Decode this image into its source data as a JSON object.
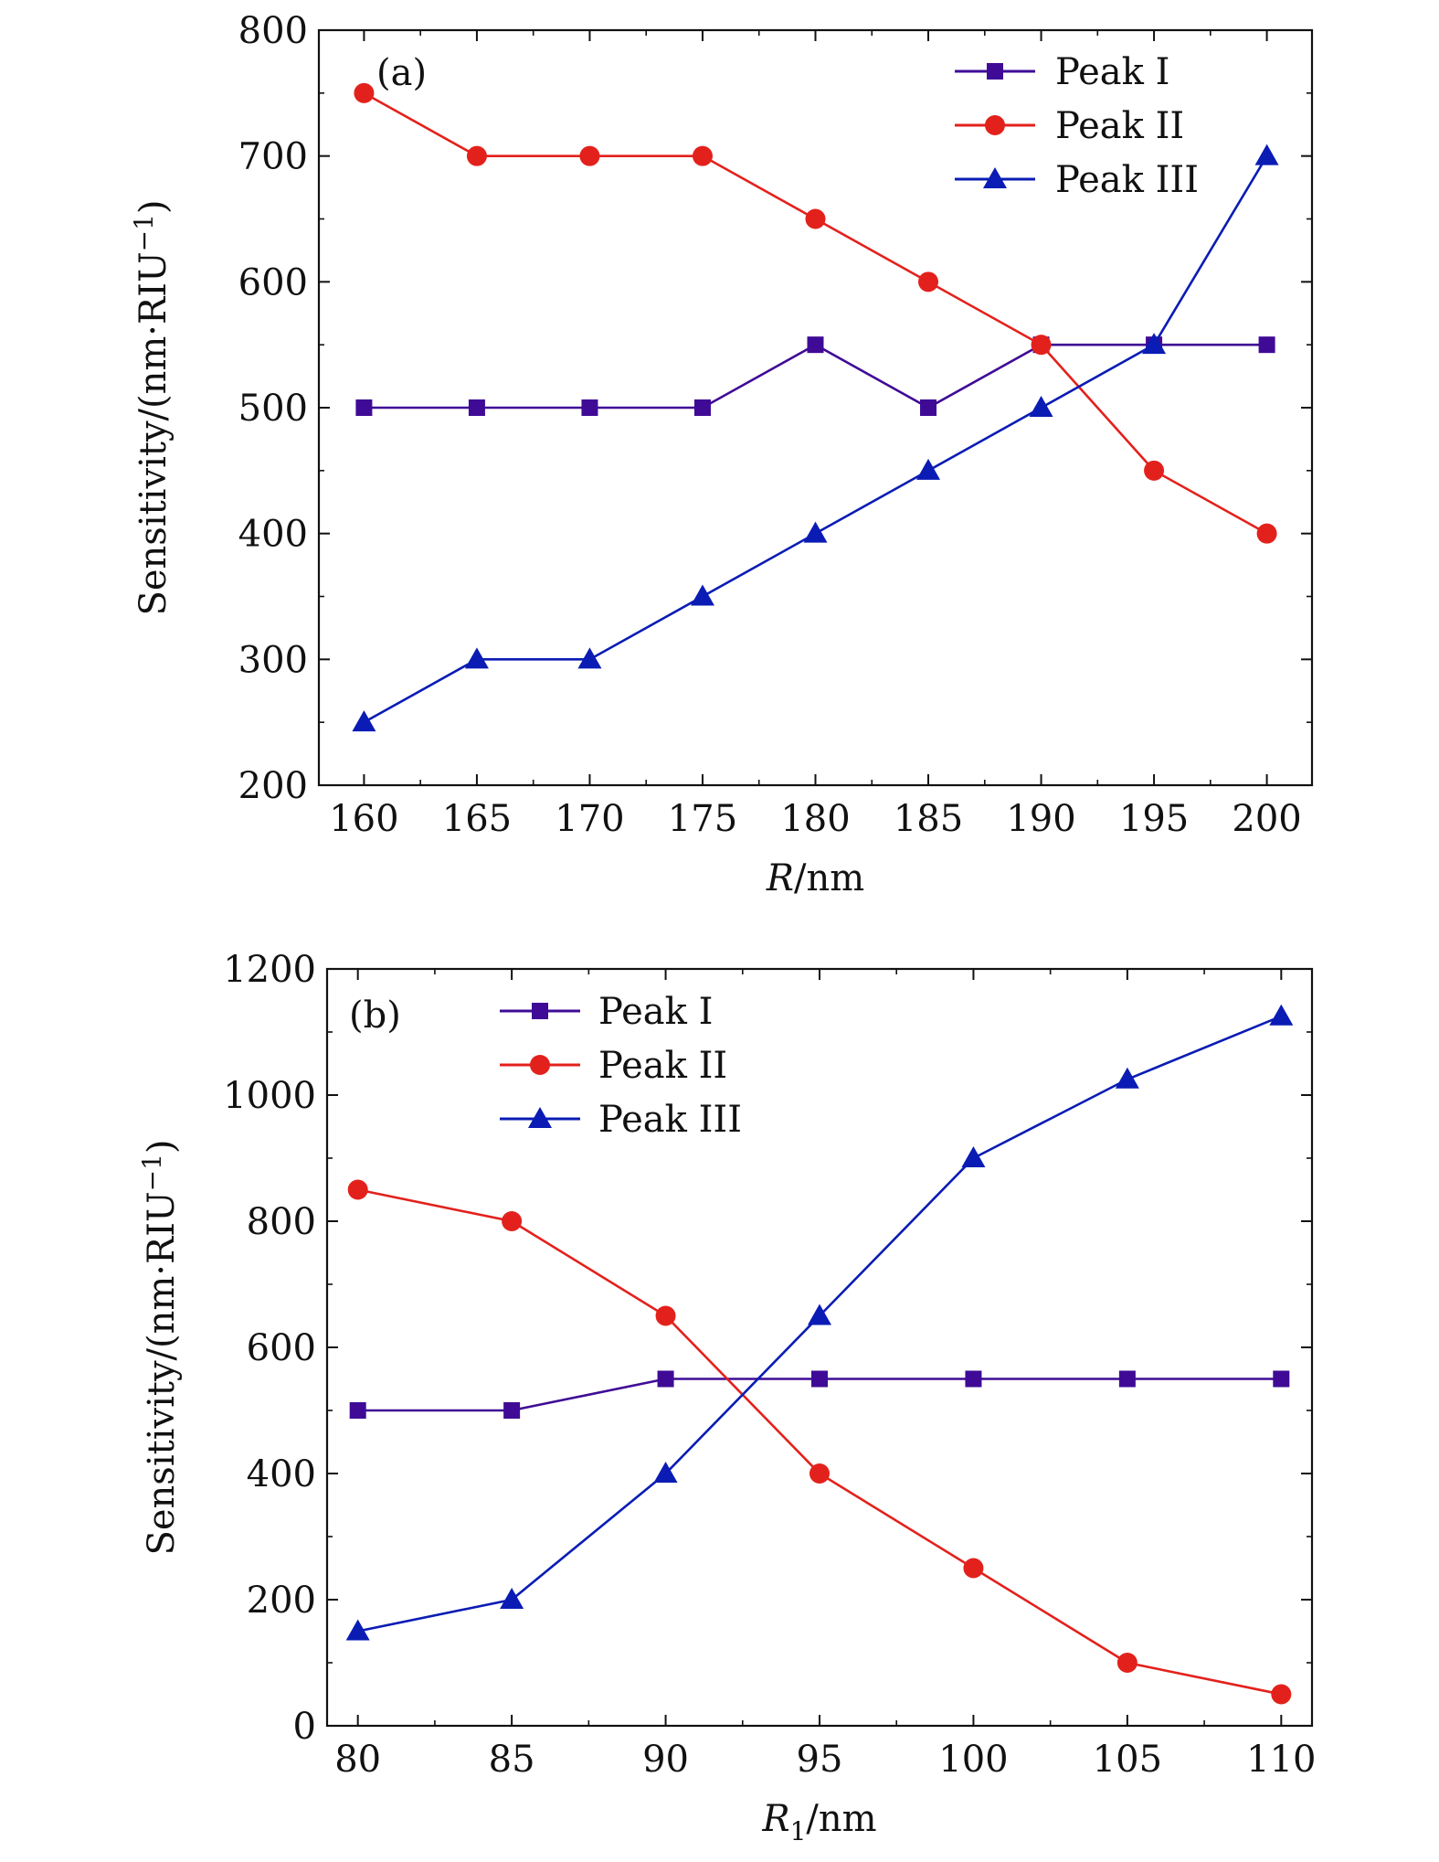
{
  "colors": {
    "peak1": "#3f0b96",
    "peak2": "#e3211c",
    "peak3": "#0a1cb4",
    "axis": "#111111"
  },
  "chart_data": [
    {
      "type": "line",
      "panel_label": "(a)",
      "xlabel_main": "R",
      "xlabel_sub": "",
      "xlabel_unit": "/nm",
      "ylabel": "Sensitivity/(nm·RIU",
      "ylabel_exp": "−1",
      "ylabel_end": ")",
      "xlim": [
        158,
        202
      ],
      "ylim": [
        200,
        800
      ],
      "xticks": [
        160,
        165,
        170,
        175,
        180,
        185,
        190,
        195,
        200
      ],
      "yticks": [
        200,
        300,
        400,
        500,
        600,
        700,
        800
      ],
      "x": [
        160,
        165,
        170,
        175,
        180,
        185,
        190,
        195,
        200
      ],
      "legend_position": "top-right",
      "series": [
        {
          "name": "Peak I",
          "marker": "square",
          "color_key": "peak1",
          "values": [
            500,
            500,
            500,
            500,
            550,
            500,
            550,
            550,
            550
          ]
        },
        {
          "name": "Peak II",
          "marker": "circle",
          "color_key": "peak2",
          "values": [
            750,
            700,
            700,
            700,
            650,
            600,
            550,
            450,
            400
          ]
        },
        {
          "name": "Peak III",
          "marker": "triangle",
          "color_key": "peak3",
          "values": [
            250,
            300,
            300,
            350,
            400,
            450,
            500,
            550,
            700
          ]
        }
      ]
    },
    {
      "type": "line",
      "panel_label": "(b)",
      "xlabel_main": "R",
      "xlabel_sub": "1",
      "xlabel_unit": "/nm",
      "ylabel": "Sensitivity/(nm·RIU",
      "ylabel_exp": "−1",
      "ylabel_end": ")",
      "xlim": [
        79,
        111
      ],
      "ylim": [
        0,
        1200
      ],
      "xticks": [
        80,
        85,
        90,
        95,
        100,
        105,
        110
      ],
      "yticks": [
        0,
        200,
        400,
        600,
        800,
        1000,
        1200
      ],
      "x": [
        80,
        85,
        90,
        95,
        100,
        105,
        110
      ],
      "legend_position": "top-left",
      "series": [
        {
          "name": "Peak I",
          "marker": "square",
          "color_key": "peak1",
          "values": [
            500,
            500,
            550,
            550,
            550,
            550,
            550
          ]
        },
        {
          "name": "Peak II",
          "marker": "circle",
          "color_key": "peak2",
          "values": [
            850,
            800,
            650,
            400,
            250,
            100,
            50
          ]
        },
        {
          "name": "Peak III",
          "marker": "triangle",
          "color_key": "peak3",
          "values": [
            150,
            200,
            400,
            650,
            900,
            1025,
            1125
          ]
        }
      ]
    }
  ]
}
